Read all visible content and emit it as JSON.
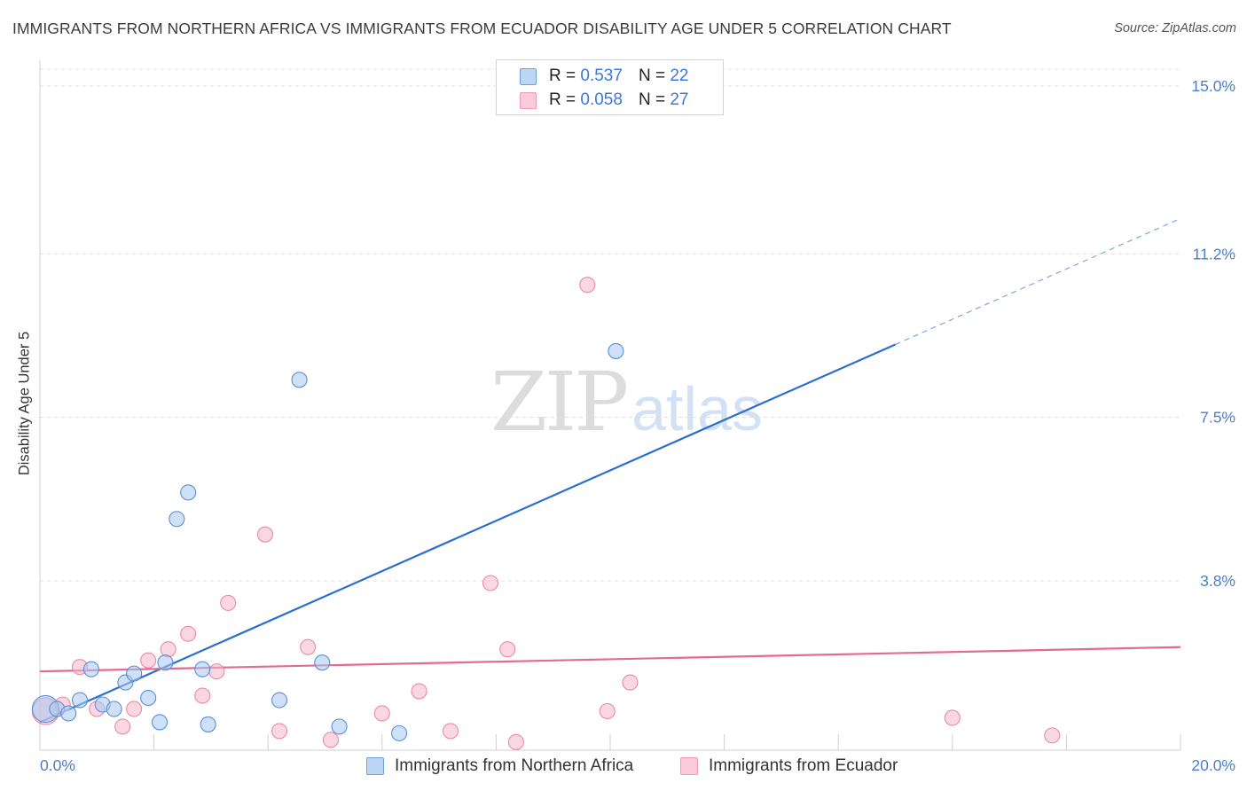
{
  "header": {
    "title": "IMMIGRANTS FROM NORTHERN AFRICA VS IMMIGRANTS FROM ECUADOR DISABILITY AGE UNDER 5 CORRELATION CHART",
    "source": "Source: ZipAtlas.com"
  },
  "watermark": {
    "zip": "ZIP",
    "atlas": "atlas"
  },
  "legend": {
    "rows": [
      {
        "r_label": "R =",
        "r_value": "0.537",
        "n_label": "N =",
        "n_value": "22"
      },
      {
        "r_label": "R =",
        "r_value": "0.058",
        "n_label": "N =",
        "n_value": "27"
      }
    ]
  },
  "colors": {
    "blue_fill": "#a8c8f0",
    "blue_stroke": "#5a8fd6",
    "blue_line": "#2a6fd0",
    "pink_fill": "#f7b6cb",
    "pink_stroke": "#e88aa8",
    "pink_line": "#e26b94",
    "tick_text": "#4a7ecb",
    "grid": "#dcdcdc"
  },
  "chart_data": {
    "type": "scatter",
    "title": "IMMIGRANTS FROM NORTHERN AFRICA VS IMMIGRANTS FROM ECUADOR DISABILITY AGE UNDER 5 CORRELATION CHART",
    "xlabel": "",
    "ylabel": "Disability Age Under 5",
    "xlim": [
      0,
      20
    ],
    "ylim": [
      0,
      15.5
    ],
    "x_tick_labels": [
      {
        "value": 0,
        "label": "0.0%"
      },
      {
        "value": 20,
        "label": "20.0%"
      }
    ],
    "y_tick_labels": [
      {
        "value": 3.8,
        "label": "3.8%"
      },
      {
        "value": 7.5,
        "label": "7.5%"
      },
      {
        "value": 11.2,
        "label": "11.2%"
      },
      {
        "value": 15.0,
        "label": "15.0%"
      }
    ],
    "grid": true,
    "legend_position": "top-center",
    "series": [
      {
        "name": "Immigrants from Northern Africa",
        "color": "blue",
        "r": 0.537,
        "n": 22,
        "points": [
          {
            "x": 0.1,
            "y": 0.9,
            "size": "large"
          },
          {
            "x": 0.3,
            "y": 0.9
          },
          {
            "x": 0.5,
            "y": 0.8
          },
          {
            "x": 0.7,
            "y": 1.1
          },
          {
            "x": 0.9,
            "y": 1.8
          },
          {
            "x": 1.1,
            "y": 1.0
          },
          {
            "x": 1.3,
            "y": 0.9
          },
          {
            "x": 1.5,
            "y": 1.5
          },
          {
            "x": 1.65,
            "y": 1.7
          },
          {
            "x": 1.9,
            "y": 1.15
          },
          {
            "x": 2.1,
            "y": 0.6
          },
          {
            "x": 2.2,
            "y": 1.95
          },
          {
            "x": 2.4,
            "y": 5.2
          },
          {
            "x": 2.6,
            "y": 5.8
          },
          {
            "x": 2.85,
            "y": 1.8
          },
          {
            "x": 2.95,
            "y": 0.55
          },
          {
            "x": 4.2,
            "y": 1.1
          },
          {
            "x": 4.55,
            "y": 8.35
          },
          {
            "x": 4.95,
            "y": 1.95
          },
          {
            "x": 5.25,
            "y": 0.5
          },
          {
            "x": 6.3,
            "y": 0.35
          },
          {
            "x": 10.1,
            "y": 9.0
          }
        ],
        "trendline": {
          "x0": 0,
          "y0": 0.6,
          "x1": 15.0,
          "y1": 9.15,
          "dashed_to_x": 20,
          "dashed_to_y": 12.0
        }
      },
      {
        "name": "Immigrants from Ecuador",
        "color": "pink",
        "r": 0.058,
        "n": 27,
        "points": [
          {
            "x": 0.1,
            "y": 0.85,
            "size": "large"
          },
          {
            "x": 0.4,
            "y": 1.0
          },
          {
            "x": 0.7,
            "y": 1.85
          },
          {
            "x": 1.0,
            "y": 0.9
          },
          {
            "x": 1.45,
            "y": 0.5
          },
          {
            "x": 1.65,
            "y": 0.9
          },
          {
            "x": 1.9,
            "y": 2.0
          },
          {
            "x": 2.25,
            "y": 2.25
          },
          {
            "x": 2.6,
            "y": 2.6
          },
          {
            "x": 2.85,
            "y": 1.2
          },
          {
            "x": 3.1,
            "y": 1.75
          },
          {
            "x": 3.3,
            "y": 3.3
          },
          {
            "x": 3.95,
            "y": 4.85
          },
          {
            "x": 4.2,
            "y": 0.4
          },
          {
            "x": 4.7,
            "y": 2.3
          },
          {
            "x": 5.1,
            "y": 0.2
          },
          {
            "x": 6.0,
            "y": 0.8
          },
          {
            "x": 6.65,
            "y": 1.3
          },
          {
            "x": 7.2,
            "y": 0.4
          },
          {
            "x": 7.9,
            "y": 3.75
          },
          {
            "x": 8.2,
            "y": 2.25
          },
          {
            "x": 8.35,
            "y": 0.15
          },
          {
            "x": 9.6,
            "y": 10.5
          },
          {
            "x": 9.95,
            "y": 0.85
          },
          {
            "x": 10.35,
            "y": 1.5
          },
          {
            "x": 16.0,
            "y": 0.7
          },
          {
            "x": 17.75,
            "y": 0.3
          }
        ],
        "trendline": {
          "x0": 0,
          "y0": 1.75,
          "x1": 20,
          "y1": 2.3
        }
      }
    ]
  },
  "bottom_legend": {
    "items": [
      {
        "label": "Immigrants from Northern Africa"
      },
      {
        "label": "Immigrants from Ecuador"
      }
    ]
  }
}
